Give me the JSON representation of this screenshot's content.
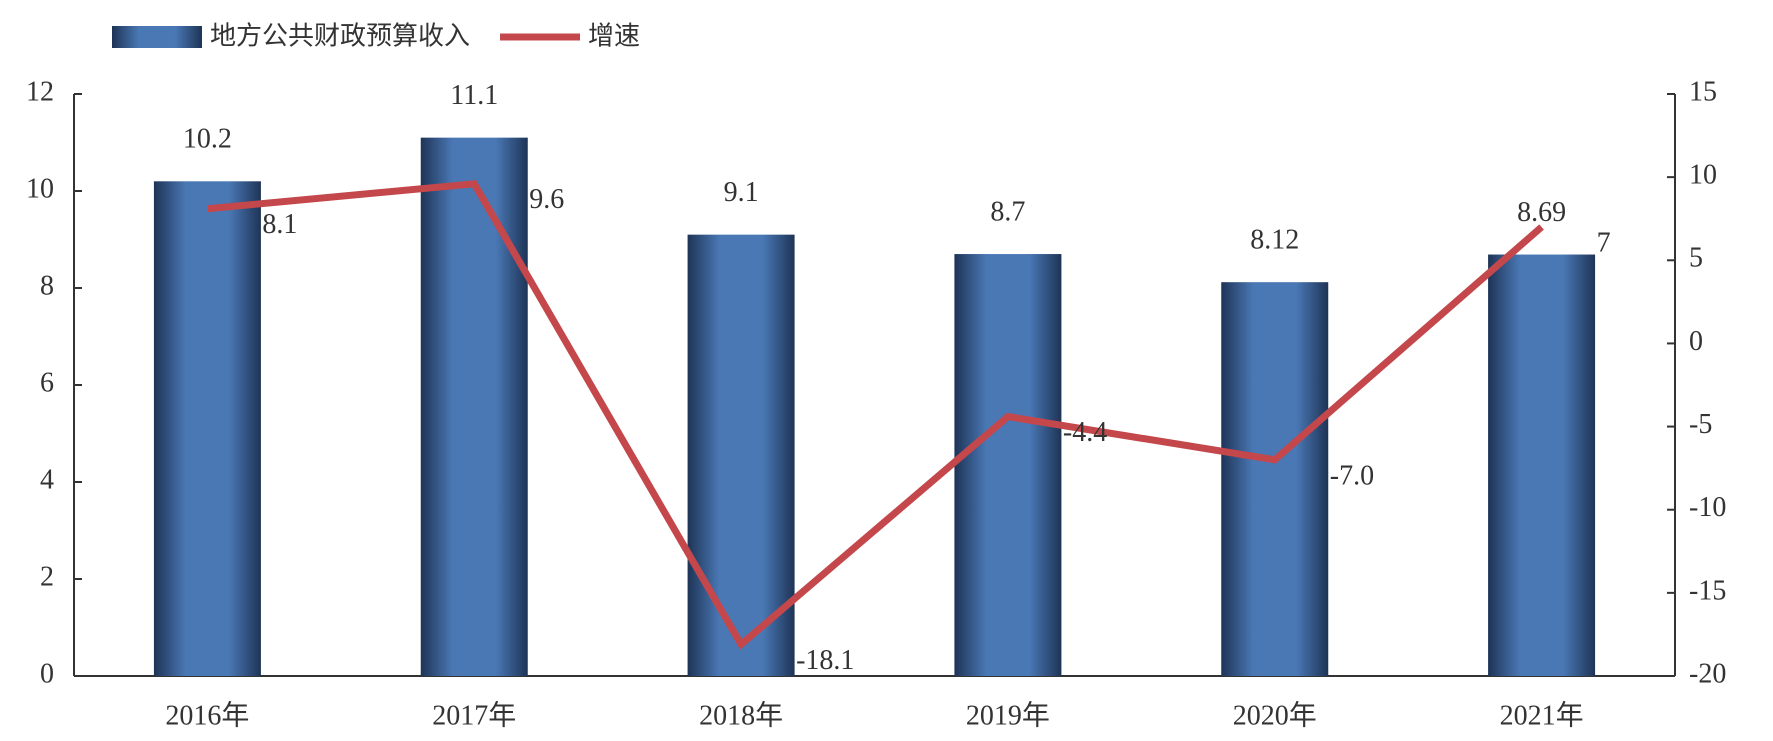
{
  "chart_data": {
    "type": "bar-line",
    "categories": [
      "2016年",
      "2017年",
      "2018年",
      "2019年",
      "2020年",
      "2021年"
    ],
    "series": [
      {
        "name": "地方公共财政预算收入",
        "type": "bar",
        "color": "#4a78b5",
        "values": [
          10.2,
          11.1,
          9.1,
          8.7,
          8.12,
          8.69
        ]
      },
      {
        "name": "增速",
        "type": "line",
        "axis": "y2",
        "color": "#c4474b",
        "values": [
          8.1,
          9.6,
          -18.1,
          -4.4,
          -7.0,
          7
        ],
        "value_labels": [
          "8.1",
          "9.6",
          "-18.1",
          "-4.4",
          "-7.0",
          "7"
        ]
      }
    ],
    "ylim": [
      0,
      12
    ],
    "yticks": [
      0,
      2,
      4,
      6,
      8,
      10,
      12
    ],
    "y2lim": [
      -20,
      15
    ],
    "y2ticks": [
      -20,
      -15,
      -10,
      -5,
      0,
      5,
      10,
      15
    ],
    "legend": "top-left",
    "grid": false
  }
}
